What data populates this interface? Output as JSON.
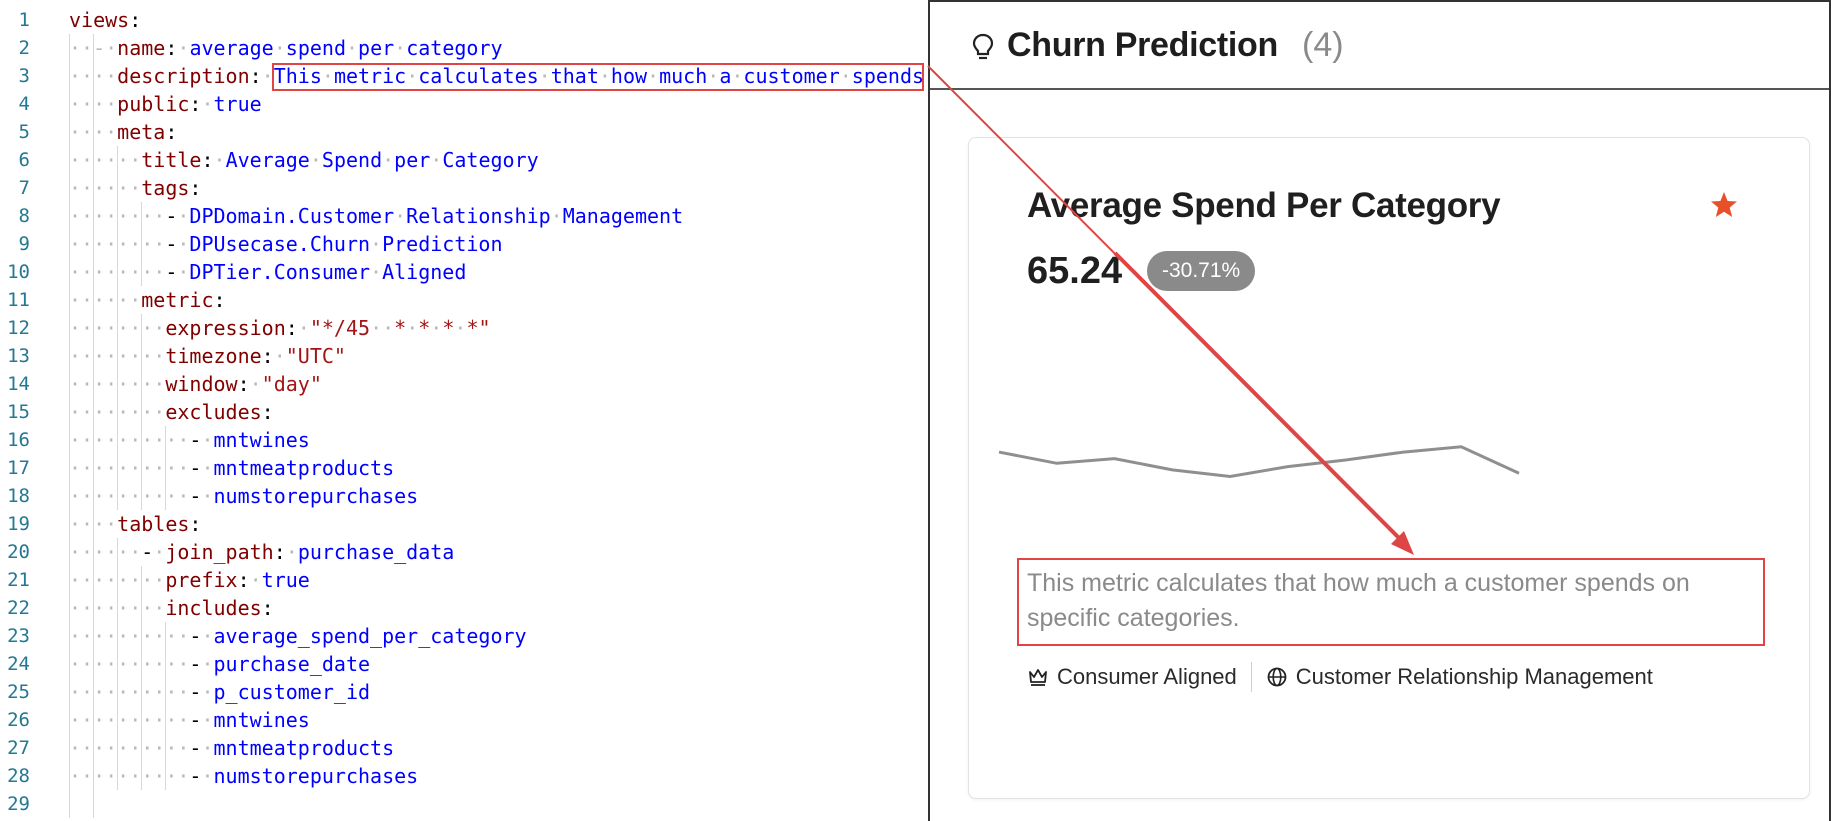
{
  "editor": {
    "lines": [
      {
        "n": "1",
        "indent": "",
        "parts": [
          {
            "t": "views",
            "c": "k"
          },
          {
            "t": ":",
            "c": "p"
          }
        ]
      },
      {
        "n": "2",
        "indent": "··-·",
        "parts": [
          {
            "t": "name",
            "c": "k"
          },
          {
            "t": ":·",
            "c": "p"
          },
          {
            "t": "average·spend·per·category",
            "c": "v"
          }
        ]
      },
      {
        "n": "3",
        "indent": "····",
        "parts": [
          {
            "t": "description",
            "c": "k"
          },
          {
            "t": ":·",
            "c": "p"
          },
          {
            "t": "This·metric·calculates·that·how·much·a·customer·spends·on·specific·categories.",
            "c": "v"
          }
        ]
      },
      {
        "n": "4",
        "indent": "····",
        "parts": [
          {
            "t": "public",
            "c": "k"
          },
          {
            "t": ":·",
            "c": "p"
          },
          {
            "t": "true",
            "c": "v"
          }
        ]
      },
      {
        "n": "5",
        "indent": "····",
        "parts": [
          {
            "t": "meta",
            "c": "k"
          },
          {
            "t": ":",
            "c": "p"
          }
        ]
      },
      {
        "n": "6",
        "indent": "······",
        "parts": [
          {
            "t": "title",
            "c": "k"
          },
          {
            "t": ":·",
            "c": "p"
          },
          {
            "t": "Average·Spend·per·Category",
            "c": "v"
          }
        ]
      },
      {
        "n": "7",
        "indent": "······",
        "parts": [
          {
            "t": "tags",
            "c": "k"
          },
          {
            "t": ":",
            "c": "p"
          }
        ]
      },
      {
        "n": "8",
        "indent": "········",
        "parts": [
          {
            "t": "-·",
            "c": "p"
          },
          {
            "t": "DPDomain.Customer·Relationship·Management",
            "c": "v"
          }
        ]
      },
      {
        "n": "9",
        "indent": "········",
        "parts": [
          {
            "t": "-·",
            "c": "p"
          },
          {
            "t": "DPUsecase.Churn·Prediction",
            "c": "v"
          }
        ]
      },
      {
        "n": "10",
        "indent": "········",
        "parts": [
          {
            "t": "-·",
            "c": "p"
          },
          {
            "t": "DPTier.Consumer·Aligned",
            "c": "v"
          }
        ]
      },
      {
        "n": "11",
        "indent": "······",
        "parts": [
          {
            "t": "metric",
            "c": "k"
          },
          {
            "t": ":",
            "c": "p"
          }
        ]
      },
      {
        "n": "12",
        "indent": "········",
        "parts": [
          {
            "t": "expression",
            "c": "k"
          },
          {
            "t": ":·",
            "c": "p"
          },
          {
            "t": "\"*/45··*·*·*·*\"",
            "c": "s"
          }
        ]
      },
      {
        "n": "13",
        "indent": "········",
        "parts": [
          {
            "t": "timezone",
            "c": "k"
          },
          {
            "t": ":·",
            "c": "p"
          },
          {
            "t": "\"UTC\"",
            "c": "s"
          }
        ]
      },
      {
        "n": "14",
        "indent": "········",
        "parts": [
          {
            "t": "window",
            "c": "k"
          },
          {
            "t": ":·",
            "c": "p"
          },
          {
            "t": "\"day\"",
            "c": "s"
          }
        ]
      },
      {
        "n": "15",
        "indent": "········",
        "parts": [
          {
            "t": "excludes",
            "c": "k"
          },
          {
            "t": ":",
            "c": "p"
          }
        ]
      },
      {
        "n": "16",
        "indent": "··········",
        "parts": [
          {
            "t": "-·",
            "c": "p"
          },
          {
            "t": "mntwines",
            "c": "v"
          }
        ]
      },
      {
        "n": "17",
        "indent": "··········",
        "parts": [
          {
            "t": "-·",
            "c": "p"
          },
          {
            "t": "mntmeatproducts",
            "c": "v"
          }
        ]
      },
      {
        "n": "18",
        "indent": "··········",
        "parts": [
          {
            "t": "-·",
            "c": "p"
          },
          {
            "t": "numstorepurchases",
            "c": "v"
          }
        ]
      },
      {
        "n": "19",
        "indent": "····",
        "parts": [
          {
            "t": "tables",
            "c": "k"
          },
          {
            "t": ":",
            "c": "p"
          }
        ]
      },
      {
        "n": "20",
        "indent": "······",
        "parts": [
          {
            "t": "-·",
            "c": "p"
          },
          {
            "t": "join_path",
            "c": "k"
          },
          {
            "t": ":·",
            "c": "p"
          },
          {
            "t": "purchase_data",
            "c": "v"
          }
        ]
      },
      {
        "n": "21",
        "indent": "········",
        "parts": [
          {
            "t": "prefix",
            "c": "k"
          },
          {
            "t": ":·",
            "c": "p"
          },
          {
            "t": "true",
            "c": "v"
          }
        ]
      },
      {
        "n": "22",
        "indent": "········",
        "parts": [
          {
            "t": "includes",
            "c": "k"
          },
          {
            "t": ":",
            "c": "p"
          }
        ]
      },
      {
        "n": "23",
        "indent": "··········",
        "parts": [
          {
            "t": "-·",
            "c": "p"
          },
          {
            "t": "average_spend_per_category",
            "c": "v"
          }
        ]
      },
      {
        "n": "24",
        "indent": "··········",
        "parts": [
          {
            "t": "-·",
            "c": "p"
          },
          {
            "t": "purchase_date",
            "c": "v"
          }
        ]
      },
      {
        "n": "25",
        "indent": "··········",
        "parts": [
          {
            "t": "-·",
            "c": "p"
          },
          {
            "t": "p_customer_id",
            "c": "v"
          }
        ]
      },
      {
        "n": "26",
        "indent": "··········",
        "parts": [
          {
            "t": "-·",
            "c": "p"
          },
          {
            "t": "mntwines",
            "c": "v"
          }
        ]
      },
      {
        "n": "27",
        "indent": "··········",
        "parts": [
          {
            "t": "-·",
            "c": "p"
          },
          {
            "t": "mntmeatproducts",
            "c": "v"
          }
        ]
      },
      {
        "n": "28",
        "indent": "··········",
        "parts": [
          {
            "t": "-·",
            "c": "p"
          },
          {
            "t": "numstorepurchases",
            "c": "v"
          }
        ]
      },
      {
        "n": "29",
        "indent": "",
        "parts": []
      }
    ]
  },
  "panel": {
    "title": "Churn Prediction",
    "count": "(4)",
    "icon": "lightbulb-icon"
  },
  "card": {
    "title": "Average Spend Per Category",
    "value": "65.24",
    "change": "-30.71%",
    "favorite_icon": "star-icon",
    "favorite_color": "#e8502a",
    "sparkline": [
      0.62,
      0.45,
      0.52,
      0.35,
      0.25,
      0.4,
      0.5,
      0.62,
      0.7,
      0.3
    ],
    "description": "This metric calculates that how much a customer spends on specific categories.",
    "tags": [
      {
        "icon": "crown-icon",
        "label": "Consumer Aligned"
      },
      {
        "icon": "globe-icon",
        "label": "Customer Relationship Management"
      }
    ]
  },
  "annotation": {
    "color": "#e04545"
  }
}
